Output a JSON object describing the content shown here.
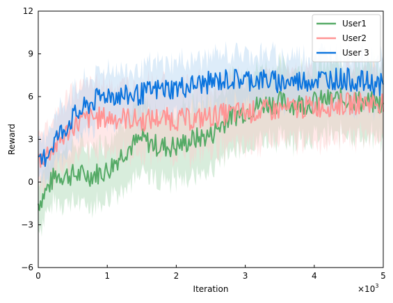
{
  "chart_data": {
    "type": "line",
    "xlabel": "Iteration",
    "ylabel": "Reward",
    "x_multiplier": "×10",
    "x_multiplier_exp": "3",
    "xlim": [
      0,
      5
    ],
    "ylim": [
      -6,
      12
    ],
    "xticks": [
      0,
      1,
      2,
      3,
      4,
      5
    ],
    "xtick_labels": [
      "0",
      "1",
      "2",
      "3",
      "4",
      "5"
    ],
    "yticks": [
      -6,
      -3,
      0,
      3,
      6,
      9,
      12
    ],
    "ytick_labels": [
      "−6",
      "−3",
      "0",
      "3",
      "6",
      "9",
      "12"
    ],
    "grid": false,
    "legend_position": "top-right",
    "x": [
      0,
      0.25,
      0.5,
      0.75,
      1.0,
      1.25,
      1.5,
      1.75,
      2.0,
      2.25,
      2.5,
      2.75,
      3.0,
      3.25,
      3.5,
      3.75,
      4.0,
      4.25,
      4.5,
      4.75,
      5.0
    ],
    "series": [
      {
        "name": "User1",
        "color": "#55aa66",
        "band_color": "#a9d8b1",
        "values": [
          -1.5,
          0.5,
          0.5,
          0.5,
          0.8,
          2.2,
          3.0,
          2.5,
          2.5,
          3.0,
          3.3,
          4.5,
          5.0,
          5.5,
          5.6,
          5.5,
          5.6,
          5.8,
          5.8,
          5.6,
          5.5
        ],
        "band": [
          1.8,
          1.8,
          2.0,
          2.0,
          2.2,
          2.3,
          2.4,
          2.4,
          2.4,
          2.5,
          2.5,
          2.5,
          2.5,
          2.5,
          2.5,
          2.5,
          2.5,
          2.5,
          2.5,
          2.5,
          2.5
        ]
      },
      {
        "name": "User2",
        "color": "#ff9494",
        "band_color": "#ffcccc",
        "values": [
          1.5,
          2.5,
          4.0,
          4.5,
          4.5,
          4.5,
          4.3,
          4.5,
          4.4,
          4.4,
          4.6,
          4.8,
          4.9,
          5.0,
          5.1,
          5.2,
          5.3,
          5.4,
          5.5,
          5.6,
          5.6
        ],
        "band": [
          2.0,
          2.2,
          2.4,
          2.4,
          2.4,
          2.4,
          2.4,
          2.4,
          2.4,
          2.4,
          2.4,
          2.4,
          2.4,
          2.4,
          2.4,
          2.4,
          2.4,
          2.4,
          2.4,
          2.4,
          2.4
        ]
      },
      {
        "name": "User 3",
        "color": "#0b74de",
        "band_color": "#b3d4f2",
        "values": [
          1.0,
          3.0,
          4.5,
          5.5,
          6.2,
          6.0,
          6.2,
          6.5,
          6.6,
          6.8,
          7.0,
          7.2,
          7.2,
          7.2,
          7.0,
          7.1,
          7.2,
          7.3,
          7.2,
          7.0,
          6.8
        ],
        "band": [
          1.5,
          1.7,
          1.8,
          1.8,
          1.8,
          1.8,
          1.8,
          1.8,
          1.8,
          1.8,
          1.8,
          1.8,
          1.8,
          1.8,
          1.8,
          1.8,
          1.8,
          1.8,
          1.8,
          1.8,
          1.8
        ]
      }
    ]
  }
}
